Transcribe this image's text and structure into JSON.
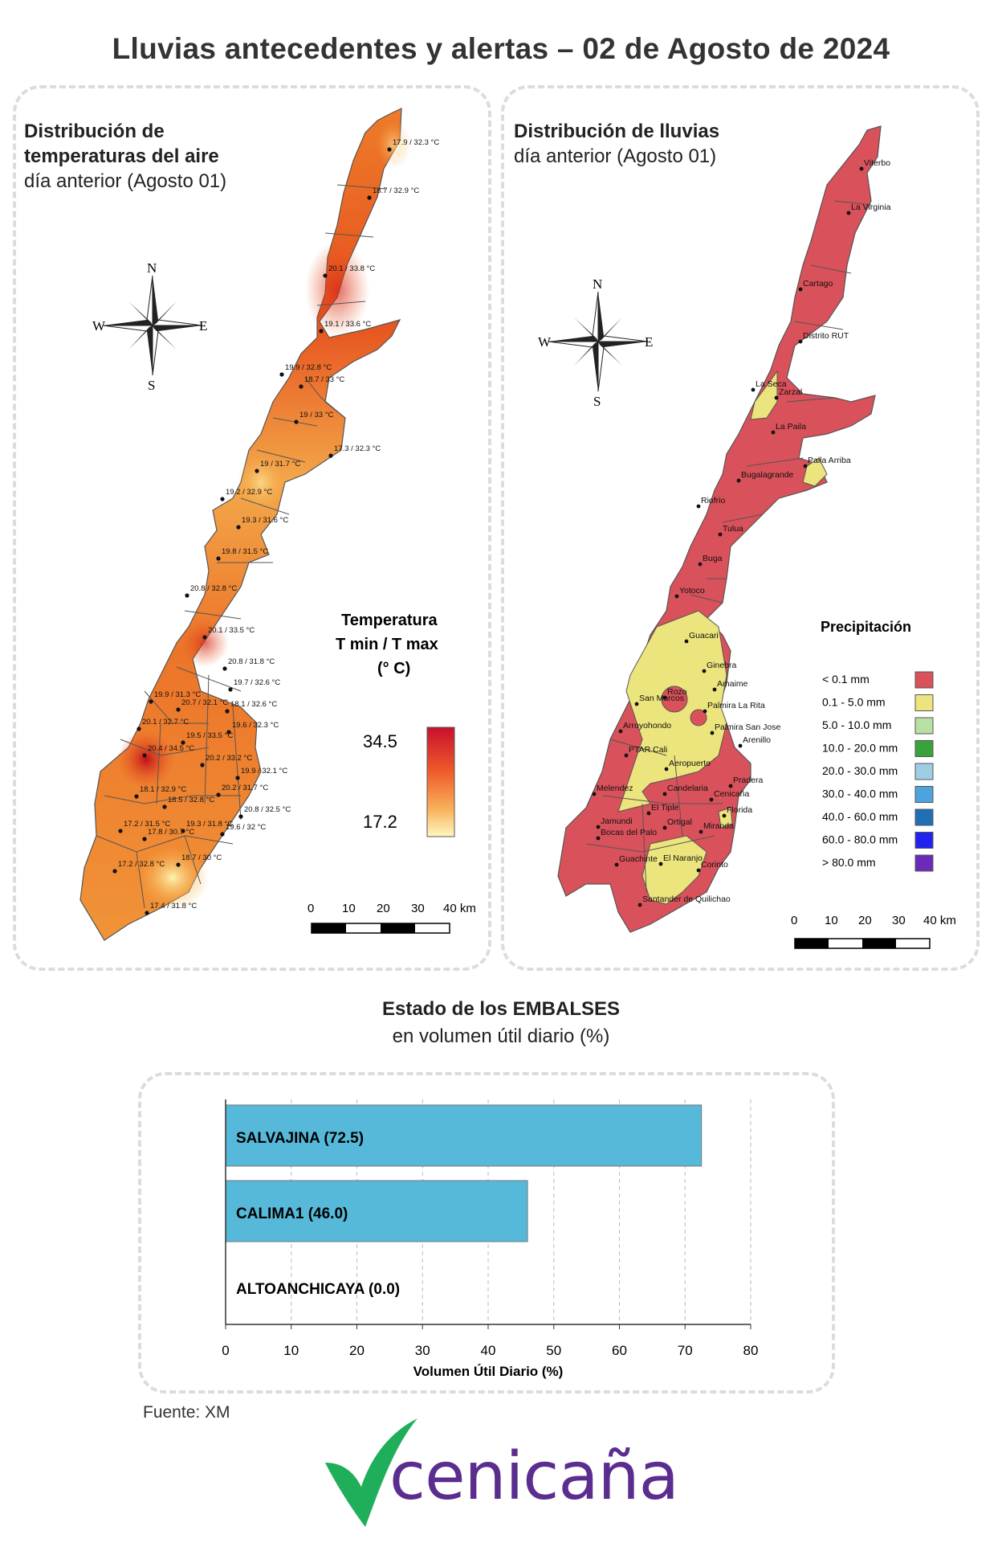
{
  "title": "Lluvias antecedentes y alertas – 02 de Agosto de 2024",
  "temp_panel": {
    "title_line1": "Distribución de",
    "title_line2": "temperaturas del aire",
    "subtitle": "día anterior (Agosto 01)",
    "legend_title1": "Temperatura",
    "legend_title2": "T min / T max",
    "legend_title3": "(° C)",
    "legend_max": "34.5",
    "legend_min": "17.2",
    "compass": {
      "n": "N",
      "s": "S",
      "e": "E",
      "w": "W"
    },
    "scale_ticks": [
      "0",
      "10",
      "20",
      "30",
      "40 km"
    ],
    "stations": [
      "17.9 / 32.3 °C",
      "18.7 / 32.9 °C",
      "20.1 / 33.8 °C",
      "19.1 / 33.6 °C",
      "19.9 / 32.8 °C",
      "18.7 / 33 °C",
      "19 / 33 °C",
      "17.3 / 32.3 °C",
      "19 / 31.7 °C",
      "19.2 / 32.9 °C",
      "19.3 / 31.6 °C",
      "19.8 / 31.5 °C",
      "20.8 / 32.8 °C",
      "20.1 / 33.5 °C",
      "20.8 / 31.8 °C",
      "19.7 / 32.6 °C",
      "19.9 / 31.3 °C",
      "20.7 / 32.1 °C",
      "18.1 / 32.6 °C",
      "20.1 / 32.7 °C",
      "19.6 / 32.3 °C",
      "19.5 / 33.5 °C",
      "20.4 / 34.5 °C",
      "20.2 / 33.2 °C",
      "19.9 / 32.1 °C",
      "18.1 / 32.9 °C",
      "20.2 / 31.7 °C",
      "18.5 / 32.8 °C",
      "20.8 / 32.5 °C",
      "17.2 / 31.5 °C",
      "19.3 / 31.8 °C",
      "19.6 / 32 °C",
      "17.8 / 30.7 °C",
      "18.7 / 30 °C",
      "17.2 / 32.8 °C",
      "17.4 / 31.8 °C"
    ]
  },
  "rain_panel": {
    "title": "Distribución de lluvias",
    "subtitle": "día anterior (Agosto 01)",
    "legend_title": "Precipitación",
    "legend": [
      {
        "label": "< 0.1 mm",
        "color": "#d9515a"
      },
      {
        "label": "0.1 - 5.0 mm",
        "color": "#ece47c"
      },
      {
        "label": "5.0 - 10.0 mm",
        "color": "#b6e0a4"
      },
      {
        "label": "10.0 - 20.0 mm",
        "color": "#38a33a"
      },
      {
        "label": "20.0 - 30.0 mm",
        "color": "#9fcde4"
      },
      {
        "label": "30.0 - 40.0 mm",
        "color": "#4ca3dd"
      },
      {
        "label": "40.0 - 60.0 mm",
        "color": "#1f6fb4"
      },
      {
        "label": "60.0 - 80.0 mm",
        "color": "#2222ee"
      },
      {
        "label": "> 80.0 mm",
        "color": "#6a2bb8"
      }
    ],
    "compass": {
      "n": "N",
      "s": "S",
      "e": "E",
      "w": "W"
    },
    "scale_ticks": [
      "0",
      "10",
      "20",
      "30",
      "40 km"
    ],
    "towns": [
      "Viterbo",
      "La Virginia",
      "Cartago",
      "Distrito RUT",
      "La Seca",
      "Zarzal",
      "La Paila",
      "Paila Arriba",
      "Bugalagrande",
      "Riofrio",
      "Tulua",
      "Buga",
      "Yotoco",
      "Guacari",
      "Ginebra",
      "Amaime",
      "San Marcos",
      "Rozo",
      "Palmira La Rita",
      "Palmira San Jose",
      "Arroyohondo",
      "PTAR Cali",
      "Aeropuerto",
      "Arenillo",
      "Candelaria",
      "Pradera",
      "Melendez",
      "El Tiple",
      "Cenicaña",
      "Florida",
      "Jamundi",
      "Bocas del Palo",
      "Ortigal",
      "Miranda",
      "Guachinte",
      "El Naranjo",
      "Corinto",
      "Santander de Quilichao"
    ]
  },
  "reservoir_title": "Estado de los EMBALSES",
  "reservoir_subtitle": "en volumen útil diario (%)",
  "chart_data": {
    "type": "bar",
    "orientation": "horizontal",
    "categories": [
      "SALVAJINA (72.5)",
      "CALIMA1 (46.0)",
      "ALTOANCHICAYA (0.0)"
    ],
    "values": [
      72.5,
      46.0,
      0.0
    ],
    "xlabel": "Volumen Útil Diario (%)",
    "xlim": [
      0,
      80
    ],
    "xticks": [
      0,
      10,
      20,
      30,
      40,
      50,
      60,
      70,
      80
    ],
    "grid": "vertical dashed",
    "bar_color": "#56b9da"
  },
  "source": "Fuente: XM",
  "logo_text": "cenicaña"
}
